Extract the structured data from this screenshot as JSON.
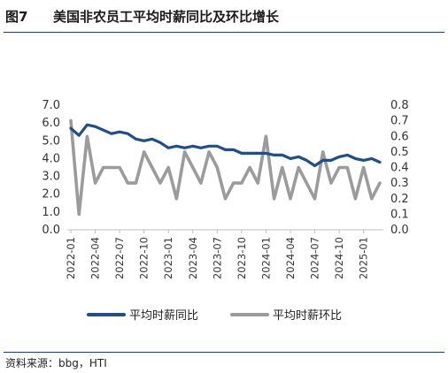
{
  "figure": {
    "number": "图7",
    "title": "美国非农员工平均时薪同比及环比增长",
    "source_label": "资料来源：",
    "source_value": "bbg，HTI"
  },
  "colors": {
    "yoy": "#1f4e8c",
    "mom": "#9b9b9b",
    "rule": "#1f3d73"
  },
  "chart_data": {
    "type": "line",
    "title": "美国非农员工平均时薪同比及环比增长",
    "x": [
      "2022-01",
      "2022-02",
      "2022-03",
      "2022-04",
      "2022-05",
      "2022-06",
      "2022-07",
      "2022-08",
      "2022-09",
      "2022-10",
      "2022-11",
      "2022-12",
      "2023-01",
      "2023-02",
      "2023-03",
      "2023-04",
      "2023-05",
      "2023-06",
      "2023-07",
      "2023-08",
      "2023-09",
      "2023-10",
      "2023-11",
      "2023-12",
      "2024-01",
      "2024-02",
      "2024-03",
      "2024-04",
      "2024-05",
      "2024-06",
      "2024-07",
      "2024-08",
      "2024-09",
      "2024-10",
      "2024-11",
      "2024-12",
      "2025-01",
      "2025-02",
      "2025-03"
    ],
    "x_tick_labels": [
      "2022-01",
      "2022-04",
      "2022-07",
      "2022-10",
      "2023-01",
      "2023-04",
      "2023-07",
      "2023-10",
      "2024-01",
      "2024-04",
      "2024-07",
      "2024-10",
      "2025-01"
    ],
    "y_left": {
      "min": 0.0,
      "max": 7.0,
      "ticks": [
        "0.0",
        "1.0",
        "2.0",
        "3.0",
        "4.0",
        "5.0",
        "6.0",
        "7.0"
      ]
    },
    "y_right": {
      "min": 0.0,
      "max": 0.8,
      "ticks": [
        "0.0",
        "0.1",
        "0.2",
        "0.3",
        "0.4",
        "0.5",
        "0.6",
        "0.7",
        "0.8"
      ]
    },
    "grid": false,
    "legend_position": "bottom",
    "series": [
      {
        "name": "平均时薪同比",
        "axis": "left",
        "values": [
          5.7,
          5.3,
          5.9,
          5.8,
          5.6,
          5.4,
          5.5,
          5.4,
          5.1,
          5.0,
          5.1,
          4.9,
          4.6,
          4.7,
          4.6,
          4.7,
          4.6,
          4.7,
          4.7,
          4.5,
          4.5,
          4.3,
          4.3,
          4.3,
          4.3,
          4.2,
          4.2,
          4.0,
          4.1,
          3.9,
          3.6,
          3.9,
          3.9,
          4.1,
          4.2,
          4.0,
          3.9,
          4.0,
          3.8
        ]
      },
      {
        "name": "平均时薪环比",
        "axis": "right",
        "values": [
          0.7,
          0.1,
          0.6,
          0.3,
          0.4,
          0.4,
          0.4,
          0.3,
          0.3,
          0.5,
          0.4,
          0.3,
          0.4,
          0.2,
          0.5,
          0.4,
          0.3,
          0.5,
          0.4,
          0.2,
          0.3,
          0.3,
          0.4,
          0.3,
          0.6,
          0.2,
          0.4,
          0.2,
          0.4,
          0.3,
          0.2,
          0.5,
          0.3,
          0.4,
          0.4,
          0.2,
          0.4,
          0.2,
          0.3
        ]
      }
    ]
  }
}
